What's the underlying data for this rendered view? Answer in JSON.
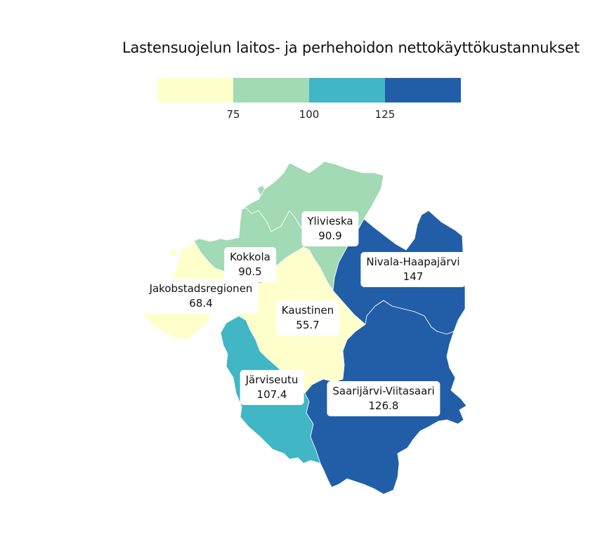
{
  "title": "Lastensuojelun laitos- ja perhehoidon nettokäyttökustannukset",
  "legend": {
    "colors": [
      "#ffffcc",
      "#a1dab4",
      "#41b6c4",
      "#225ea8"
    ],
    "ticks": [
      "75",
      "100",
      "125"
    ]
  },
  "regions": [
    {
      "name": "Jakobstadsregionen",
      "value": "68.4",
      "color": "#ffffcc"
    },
    {
      "name": "Kokkola",
      "value": "90.5",
      "color": "#a1dab4"
    },
    {
      "name": "Ylivieska",
      "value": "90.9",
      "color": "#a1dab4"
    },
    {
      "name": "Kaustinen",
      "value": "55.7",
      "color": "#ffffcc"
    },
    {
      "name": "Nivala-Haapajärvi",
      "value": "147",
      "color": "#225ea8"
    },
    {
      "name": "Järviseutu",
      "value": "107.4",
      "color": "#41b6c4"
    },
    {
      "name": "Saarijärvi-Viitasaari",
      "value": "126.8",
      "color": "#225ea8"
    }
  ]
}
